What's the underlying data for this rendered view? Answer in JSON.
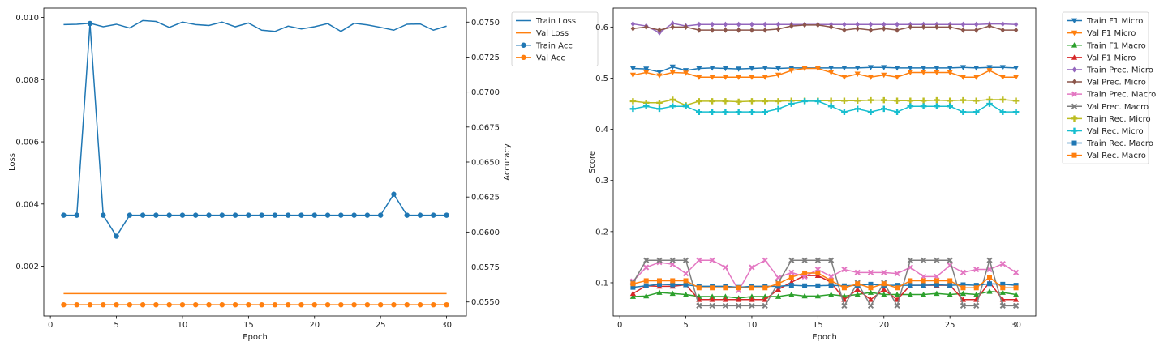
{
  "chart_data": [
    {
      "type": "line",
      "xlabel": "Epoch",
      "ylabel": "Loss",
      "y2label": "Accuracy",
      "xlim": [
        -0.5,
        31.5
      ],
      "ylim": [
        0.0004,
        0.0103
      ],
      "y2lim": [
        0.054,
        0.076
      ],
      "x_ticks": [
        0,
        5,
        10,
        15,
        20,
        25,
        30
      ],
      "y_ticks": [
        "0.002",
        "0.004",
        "0.006",
        "0.008",
        "0.010"
      ],
      "y2_ticks": [
        "0.0550",
        "0.0575",
        "0.0600",
        "0.0625",
        "0.0650",
        "0.0675",
        "0.0700",
        "0.0725",
        "0.0750"
      ],
      "legend_position": "outside-right",
      "x": [
        1,
        2,
        3,
        4,
        5,
        6,
        7,
        8,
        9,
        10,
        11,
        12,
        13,
        14,
        15,
        16,
        17,
        18,
        19,
        20,
        21,
        22,
        23,
        24,
        25,
        26,
        27,
        28,
        29,
        30
      ],
      "series": [
        {
          "name": "Train Loss",
          "axis": "left",
          "color": "#1f77b4",
          "marker": "none",
          "values": [
            0.00977,
            0.00978,
            0.00981,
            0.0097,
            0.00978,
            0.00966,
            0.0099,
            0.00987,
            0.00968,
            0.00985,
            0.00977,
            0.00974,
            0.00985,
            0.0097,
            0.00982,
            0.00959,
            0.00955,
            0.00972,
            0.00963,
            0.0097,
            0.0098,
            0.00955,
            0.00981,
            0.00976,
            0.00968,
            0.00959,
            0.00978,
            0.00979,
            0.00959,
            0.00972
          ]
        },
        {
          "name": "Val Loss",
          "axis": "left",
          "color": "#ff7f0e",
          "marker": "none",
          "values": [
            0.00112,
            0.00112,
            0.00112,
            0.00112,
            0.00112,
            0.00112,
            0.00112,
            0.00112,
            0.00112,
            0.00112,
            0.00112,
            0.00112,
            0.00112,
            0.00112,
            0.00112,
            0.00112,
            0.00112,
            0.00112,
            0.00112,
            0.00112,
            0.00112,
            0.00112,
            0.00112,
            0.00112,
            0.00112,
            0.00112,
            0.00112,
            0.00112,
            0.00112,
            0.00112
          ]
        },
        {
          "name": "Train Acc",
          "axis": "right",
          "color": "#1f77b4",
          "marker": "circle",
          "values": [
            0.0612,
            0.0612,
            0.0749,
            0.0612,
            0.0597,
            0.0612,
            0.0612,
            0.0612,
            0.0612,
            0.0612,
            0.0612,
            0.0612,
            0.0612,
            0.0612,
            0.0612,
            0.0612,
            0.0612,
            0.0612,
            0.0612,
            0.0612,
            0.0612,
            0.0612,
            0.0612,
            0.0612,
            0.0612,
            0.0627,
            0.0612,
            0.0612,
            0.0612,
            0.0612
          ]
        },
        {
          "name": "Val Acc",
          "axis": "right",
          "color": "#ff7f0e",
          "marker": "circle",
          "values": [
            0.0548,
            0.0548,
            0.0548,
            0.0548,
            0.0548,
            0.0548,
            0.0548,
            0.0548,
            0.0548,
            0.0548,
            0.0548,
            0.0548,
            0.0548,
            0.0548,
            0.0548,
            0.0548,
            0.0548,
            0.0548,
            0.0548,
            0.0548,
            0.0548,
            0.0548,
            0.0548,
            0.0548,
            0.0548,
            0.0548,
            0.0548,
            0.0548,
            0.0548,
            0.0548
          ]
        }
      ]
    },
    {
      "type": "line",
      "xlabel": "Epoch",
      "ylabel": "Score",
      "xlim": [
        -0.5,
        31.5
      ],
      "ylim": [
        0.035,
        0.637
      ],
      "x_ticks": [
        0,
        5,
        10,
        15,
        20,
        25,
        30
      ],
      "y_ticks": [
        "0.1",
        "0.2",
        "0.3",
        "0.4",
        "0.5",
        "0.6"
      ],
      "legend_position": "outside-right",
      "x": [
        1,
        2,
        3,
        4,
        5,
        6,
        7,
        8,
        9,
        10,
        11,
        12,
        13,
        14,
        15,
        16,
        17,
        18,
        19,
        20,
        21,
        22,
        23,
        24,
        25,
        26,
        27,
        28,
        29,
        30
      ],
      "series": [
        {
          "name": "Train F1 Micro",
          "color": "#1f77b4",
          "marker": "triangle-down",
          "values": [
            0.519,
            0.518,
            0.512,
            0.522,
            0.515,
            0.519,
            0.52,
            0.519,
            0.518,
            0.519,
            0.52,
            0.519,
            0.52,
            0.52,
            0.52,
            0.52,
            0.52,
            0.52,
            0.521,
            0.521,
            0.52,
            0.52,
            0.52,
            0.52,
            0.52,
            0.521,
            0.52,
            0.521,
            0.521,
            0.52
          ]
        },
        {
          "name": "Val F1 Micro",
          "color": "#ff7f0e",
          "marker": "triangle-down",
          "values": [
            0.506,
            0.511,
            0.505,
            0.511,
            0.51,
            0.502,
            0.502,
            0.502,
            0.502,
            0.502,
            0.502,
            0.506,
            0.515,
            0.519,
            0.519,
            0.511,
            0.502,
            0.508,
            0.502,
            0.506,
            0.502,
            0.511,
            0.511,
            0.511,
            0.511,
            0.502,
            0.502,
            0.515,
            0.502,
            0.502
          ]
        },
        {
          "name": "Train F1 Macro",
          "color": "#2ca02c",
          "marker": "triangle-up",
          "values": [
            0.073,
            0.074,
            0.081,
            0.079,
            0.077,
            0.073,
            0.073,
            0.073,
            0.07,
            0.073,
            0.073,
            0.073,
            0.077,
            0.074,
            0.074,
            0.077,
            0.074,
            0.077,
            0.081,
            0.077,
            0.077,
            0.077,
            0.077,
            0.079,
            0.077,
            0.079,
            0.077,
            0.083,
            0.081,
            0.077
          ]
        },
        {
          "name": "Val F1 Micro",
          "color": "#d62728",
          "marker": "triangle-up",
          "values": [
            0.079,
            0.094,
            0.093,
            0.093,
            0.096,
            0.067,
            0.067,
            0.067,
            0.067,
            0.067,
            0.067,
            0.087,
            0.101,
            0.114,
            0.114,
            0.101,
            0.067,
            0.087,
            0.067,
            0.087,
            0.067,
            0.095,
            0.095,
            0.095,
            0.095,
            0.067,
            0.067,
            0.101,
            0.067,
            0.067
          ]
        },
        {
          "name": "Train Prec. Micro",
          "color": "#9467bd",
          "marker": "diamond",
          "values": [
            0.606,
            0.602,
            0.589,
            0.607,
            0.602,
            0.605,
            0.605,
            0.605,
            0.605,
            0.605,
            0.605,
            0.605,
            0.605,
            0.605,
            0.605,
            0.605,
            0.605,
            0.605,
            0.605,
            0.605,
            0.605,
            0.605,
            0.605,
            0.605,
            0.605,
            0.605,
            0.605,
            0.606,
            0.606,
            0.605
          ]
        },
        {
          "name": "Val Prec. Micro",
          "color": "#8c564b",
          "marker": "diamond",
          "values": [
            0.597,
            0.6,
            0.594,
            0.6,
            0.6,
            0.594,
            0.594,
            0.594,
            0.594,
            0.594,
            0.594,
            0.596,
            0.602,
            0.604,
            0.604,
            0.6,
            0.594,
            0.597,
            0.594,
            0.597,
            0.594,
            0.6,
            0.6,
            0.6,
            0.6,
            0.594,
            0.594,
            0.602,
            0.594,
            0.594
          ]
        },
        {
          "name": "Train Prec. Macro",
          "color": "#e377c2",
          "marker": "x",
          "values": [
            0.103,
            0.13,
            0.14,
            0.136,
            0.118,
            0.144,
            0.144,
            0.13,
            0.085,
            0.13,
            0.144,
            0.11,
            0.12,
            0.112,
            0.126,
            0.112,
            0.126,
            0.12,
            0.12,
            0.12,
            0.118,
            0.13,
            0.112,
            0.112,
            0.134,
            0.12,
            0.126,
            0.126,
            0.137,
            0.12
          ]
        },
        {
          "name": "Val Prec. Macro",
          "color": "#7f7f7f",
          "marker": "x",
          "values": [
            0.1,
            0.144,
            0.144,
            0.144,
            0.144,
            0.055,
            0.055,
            0.055,
            0.055,
            0.055,
            0.055,
            0.1,
            0.144,
            0.144,
            0.144,
            0.144,
            0.055,
            0.1,
            0.055,
            0.1,
            0.055,
            0.144,
            0.144,
            0.144,
            0.144,
            0.055,
            0.055,
            0.144,
            0.055,
            0.055
          ]
        },
        {
          "name": "Train Rec. Micro",
          "color": "#bcbd22",
          "marker": "plus",
          "values": [
            0.455,
            0.452,
            0.452,
            0.458,
            0.447,
            0.455,
            0.455,
            0.455,
            0.454,
            0.455,
            0.455,
            0.455,
            0.456,
            0.456,
            0.456,
            0.456,
            0.456,
            0.456,
            0.457,
            0.457,
            0.456,
            0.456,
            0.456,
            0.457,
            0.456,
            0.457,
            0.456,
            0.458,
            0.458,
            0.456
          ]
        },
        {
          "name": "Val Rec. Micro",
          "color": "#17becf",
          "marker": "plus",
          "values": [
            0.44,
            0.445,
            0.44,
            0.445,
            0.445,
            0.434,
            0.434,
            0.434,
            0.434,
            0.434,
            0.434,
            0.44,
            0.45,
            0.455,
            0.455,
            0.445,
            0.434,
            0.44,
            0.434,
            0.44,
            0.434,
            0.445,
            0.445,
            0.445,
            0.445,
            0.434,
            0.434,
            0.45,
            0.434,
            0.434
          ]
        },
        {
          "name": "Train Rec. Macro",
          "color": "#1f77b4",
          "marker": "square",
          "values": [
            0.091,
            0.094,
            0.097,
            0.096,
            0.096,
            0.093,
            0.093,
            0.093,
            0.091,
            0.093,
            0.093,
            0.093,
            0.095,
            0.094,
            0.094,
            0.095,
            0.094,
            0.095,
            0.097,
            0.095,
            0.095,
            0.095,
            0.095,
            0.096,
            0.095,
            0.096,
            0.095,
            0.098,
            0.097,
            0.095
          ]
        },
        {
          "name": "Val Rec. Macro",
          "color": "#ff7f0e",
          "marker": "square",
          "values": [
            0.098,
            0.104,
            0.104,
            0.104,
            0.104,
            0.09,
            0.09,
            0.09,
            0.09,
            0.09,
            0.09,
            0.098,
            0.111,
            0.119,
            0.119,
            0.104,
            0.09,
            0.098,
            0.09,
            0.098,
            0.09,
            0.104,
            0.104,
            0.104,
            0.104,
            0.09,
            0.09,
            0.111,
            0.09,
            0.09
          ]
        }
      ]
    }
  ]
}
